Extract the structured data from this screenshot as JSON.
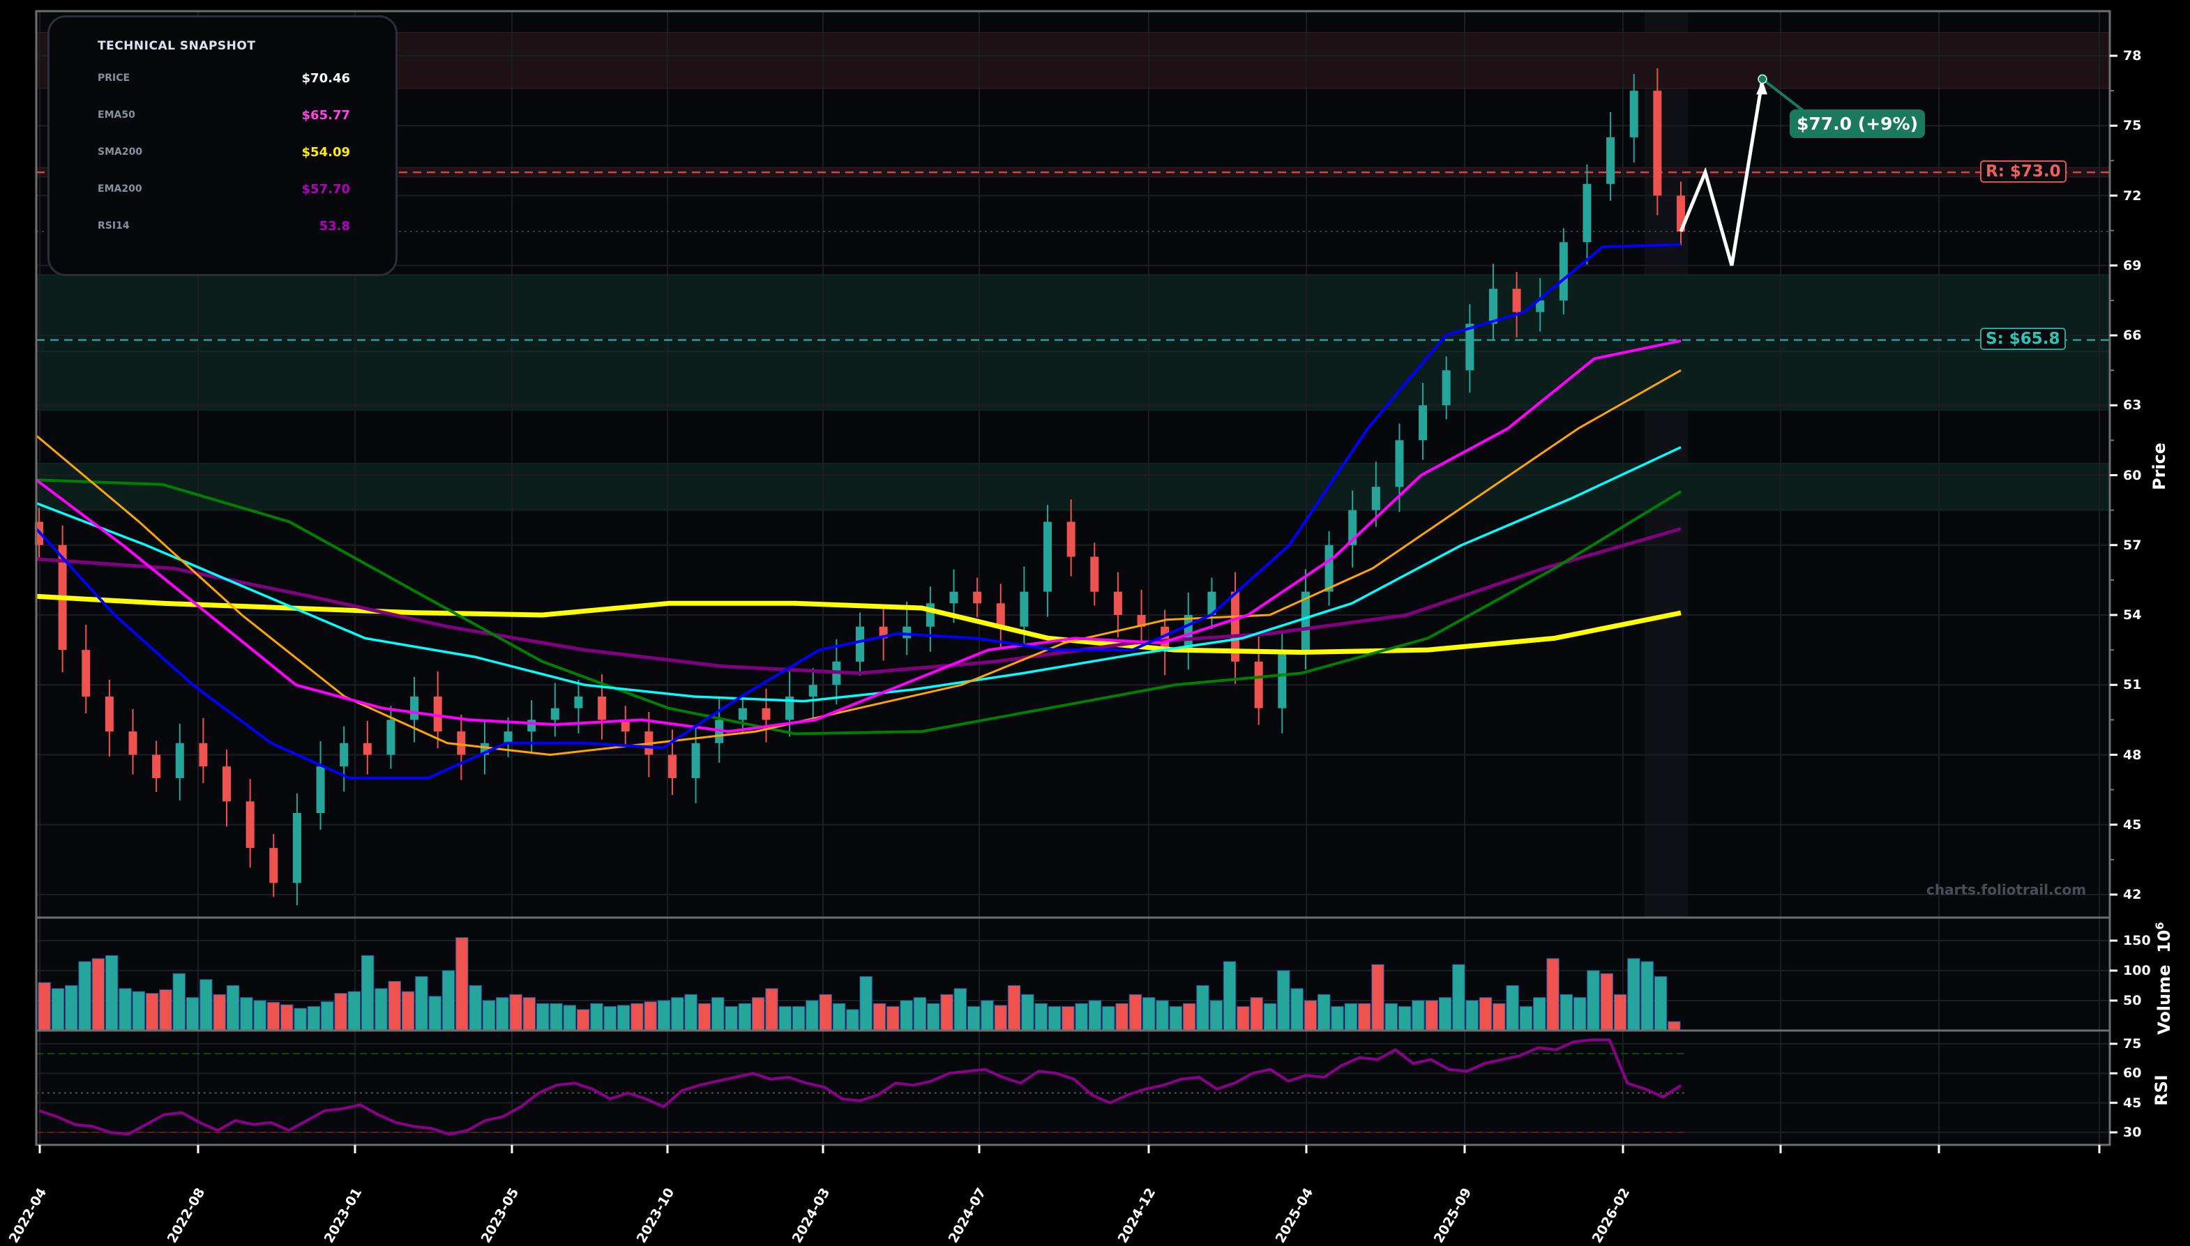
{
  "snapshot": {
    "title": "TECHNICAL SNAPSHOT",
    "rows": [
      {
        "label": "PRICE",
        "value": "$70.46",
        "color": "#ffffff"
      },
      {
        "label": "EMA50",
        "value": "$65.77",
        "color": "#ff44e0"
      },
      {
        "label": "SMA200",
        "value": "$54.09",
        "color": "#ffee00"
      },
      {
        "label": "EMA200",
        "value": "$57.70",
        "color": "#b000c0"
      },
      {
        "label": "RSI14",
        "value": "53.8",
        "color": "#b000c0"
      }
    ]
  },
  "annotations": {
    "target_label": "$77.0 (+9%)",
    "resistance_label": "R: $73.0",
    "support_label": "S: $65.8",
    "watermark": "charts.foliotrail.com"
  },
  "axes": {
    "price_title": "Price",
    "volume_title": "Volume",
    "volume_exponent": "10",
    "volume_exponent_power": "6",
    "rsi_title": "RSI",
    "price_ticks": [
      "78",
      "75",
      "72",
      "69",
      "66",
      "63",
      "60",
      "57",
      "54",
      "51",
      "48",
      "45",
      "42"
    ],
    "volume_ticks": [
      "150",
      "100",
      "50"
    ],
    "rsi_ticks": [
      "75",
      "60",
      "45",
      "30"
    ],
    "x_ticks": [
      "2022-04",
      "2022-08",
      "2023-01",
      "2023-05",
      "2023-10",
      "2024-03",
      "2024-07",
      "2024-12",
      "2025-04",
      "2025-09",
      "2026-02"
    ]
  },
  "colors": {
    "up": "#26a69a",
    "down": "#ef5350",
    "background": "#07080c",
    "resistance_zone": "#1e1216",
    "support_zone": "#0b1e1c",
    "ema20": "#0000ff",
    "ema50": "#ff00ff",
    "sma50": "#ffa500",
    "ema100": "#00ffff",
    "sma100": "#008000",
    "ema200": "#800080",
    "sma200": "#ffff00",
    "rsi": "#8b008b",
    "target": "#1b7a5e"
  },
  "chart_data": {
    "type": "candlestick",
    "title": "",
    "xlabel": "",
    "ylabel": "Price",
    "ylim": [
      41.5,
      79
    ],
    "x_range": [
      "2022-04",
      "2026-06"
    ],
    "levels": {
      "resistance": 73.0,
      "support": 65.8,
      "current_price": 70.46,
      "target": 77.0,
      "target_pct": 9,
      "resistance_zones": [
        [
          76.6,
          79.0
        ],
        [
          72.8,
          73.2
        ]
      ],
      "support_zones": [
        [
          65.3,
          68.6
        ],
        [
          62.8,
          65.3
        ],
        [
          58.5,
          60.5
        ]
      ]
    },
    "indicators": {
      "EMA50": 65.77,
      "SMA200": 54.09,
      "EMA200": 57.7,
      "RSI14": 53.8
    },
    "close_series_approx": [
      57.0,
      52.5,
      50.5,
      49.0,
      48.0,
      47.0,
      48.5,
      47.5,
      46.0,
      44.0,
      42.5,
      45.5,
      47.5,
      48.5,
      48.0,
      49.5,
      50.5,
      49.0,
      48.0,
      48.5,
      49.0,
      49.5,
      50.0,
      50.5,
      49.5,
      49.0,
      48.0,
      47.0,
      48.5,
      49.5,
      50.0,
      49.5,
      50.5,
      51.0,
      52.0,
      53.5,
      53.0,
      53.5,
      54.5,
      55.0,
      54.5,
      53.5,
      55.0,
      58.0,
      56.5,
      55.0,
      54.0,
      53.5,
      52.5,
      54.0,
      55.0,
      52.0,
      50.0,
      52.5,
      55.0,
      57.0,
      58.5,
      59.5,
      61.5,
      63.0,
      64.5,
      66.5,
      68.0,
      67.0,
      67.5,
      70.0,
      72.5,
      74.5,
      76.5,
      72.0,
      70.46
    ],
    "moving_averages": {
      "EMA20_blue": [
        57.7,
        54.0,
        51.0,
        48.5,
        47.0,
        47.0,
        48.5,
        48.5,
        48.3,
        50.5,
        52.5,
        53.2,
        53.0,
        52.5,
        52.5,
        54.0,
        57.0,
        62.0,
        66.0,
        67.0,
        69.8,
        69.9
      ],
      "EMA50_magenta": [
        59.8,
        57.0,
        54.0,
        51.0,
        50.0,
        49.5,
        49.3,
        49.5,
        49.0,
        49.5,
        51.0,
        52.5,
        53.0,
        52.8,
        54.0,
        56.5,
        60.0,
        62.0,
        65.0,
        65.77
      ],
      "SMA50_orange": [
        61.7,
        58.0,
        54.0,
        50.5,
        48.5,
        48.0,
        48.5,
        49.0,
        50.0,
        51.0,
        52.8,
        53.8,
        54.0,
        56.0,
        59.0,
        62.0,
        64.5
      ],
      "EMA100_cyan": [
        58.8,
        57.0,
        55.0,
        53.0,
        52.2,
        51.0,
        50.5,
        50.3,
        50.8,
        51.5,
        52.3,
        53.0,
        54.5,
        57.0,
        59.0,
        61.2
      ],
      "SMA100_green": [
        59.8,
        59.6,
        58.0,
        55.0,
        52.0,
        50.0,
        48.9,
        49.0,
        50.0,
        51.0,
        51.5,
        53.0,
        56.0,
        59.3
      ],
      "EMA200_purple": [
        56.4,
        56.0,
        54.8,
        53.5,
        52.5,
        51.8,
        51.5,
        52.0,
        52.8,
        53.2,
        54.0,
        56.0,
        57.7
      ],
      "SMA200_yellow": [
        54.8,
        54.5,
        54.3,
        54.1,
        54.0,
        54.5,
        54.5,
        54.3,
        53.0,
        52.5,
        52.4,
        52.5,
        53.0,
        54.09
      ]
    },
    "volume": {
      "unit": "10^6",
      "ylim": [
        0,
        170
      ],
      "values_approx": [
        80,
        70,
        75,
        115,
        120,
        125,
        70,
        65,
        62,
        68,
        95,
        55,
        85,
        60,
        75,
        55,
        50,
        47,
        43,
        37,
        40,
        48,
        62,
        65,
        125,
        70,
        82,
        65,
        90,
        57,
        100,
        155,
        75,
        50,
        55,
        60,
        55,
        45,
        45,
        42,
        35,
        45,
        40,
        42,
        45,
        48,
        50,
        55,
        60,
        45,
        55,
        40,
        45,
        55,
        70,
        40,
        40,
        50,
        60,
        45,
        35,
        90,
        45,
        40,
        50,
        55,
        45,
        60,
        70,
        40,
        50,
        42,
        75,
        60,
        45,
        40,
        40,
        45,
        50,
        40,
        45,
        60,
        55,
        50,
        40,
        45,
        75,
        50,
        115,
        40,
        55,
        45,
        100,
        70,
        50,
        60,
        40,
        45,
        45,
        110,
        45,
        40,
        50,
        50,
        55,
        110,
        50,
        55,
        45,
        75,
        40,
        55,
        120,
        60,
        55,
        100,
        95,
        60,
        120,
        115,
        90,
        15
      ]
    },
    "rsi": {
      "period": 14,
      "ylim": [
        27,
        80
      ],
      "overbought": 70,
      "oversold": 30,
      "midline": 50,
      "values_approx": [
        41,
        38,
        34,
        33,
        30,
        29,
        34,
        39,
        40,
        35,
        31,
        36,
        34,
        35,
        31,
        36,
        41,
        42,
        44,
        39,
        35,
        33,
        32,
        29,
        31,
        36,
        38,
        43,
        50,
        54,
        55,
        52,
        47,
        50,
        47,
        43,
        51,
        54,
        56,
        58,
        60,
        57,
        58,
        55,
        53,
        47,
        46,
        49,
        55,
        54,
        56,
        60,
        61,
        62,
        58,
        55,
        61,
        60,
        57,
        49,
        45,
        49,
        52,
        54,
        57,
        58,
        52,
        55,
        60,
        62,
        56,
        59,
        58,
        64,
        68,
        67,
        72,
        65,
        67,
        62,
        61,
        65,
        67,
        69,
        73,
        72,
        76,
        77,
        77,
        55,
        52,
        48,
        53.8
      ]
    }
  }
}
